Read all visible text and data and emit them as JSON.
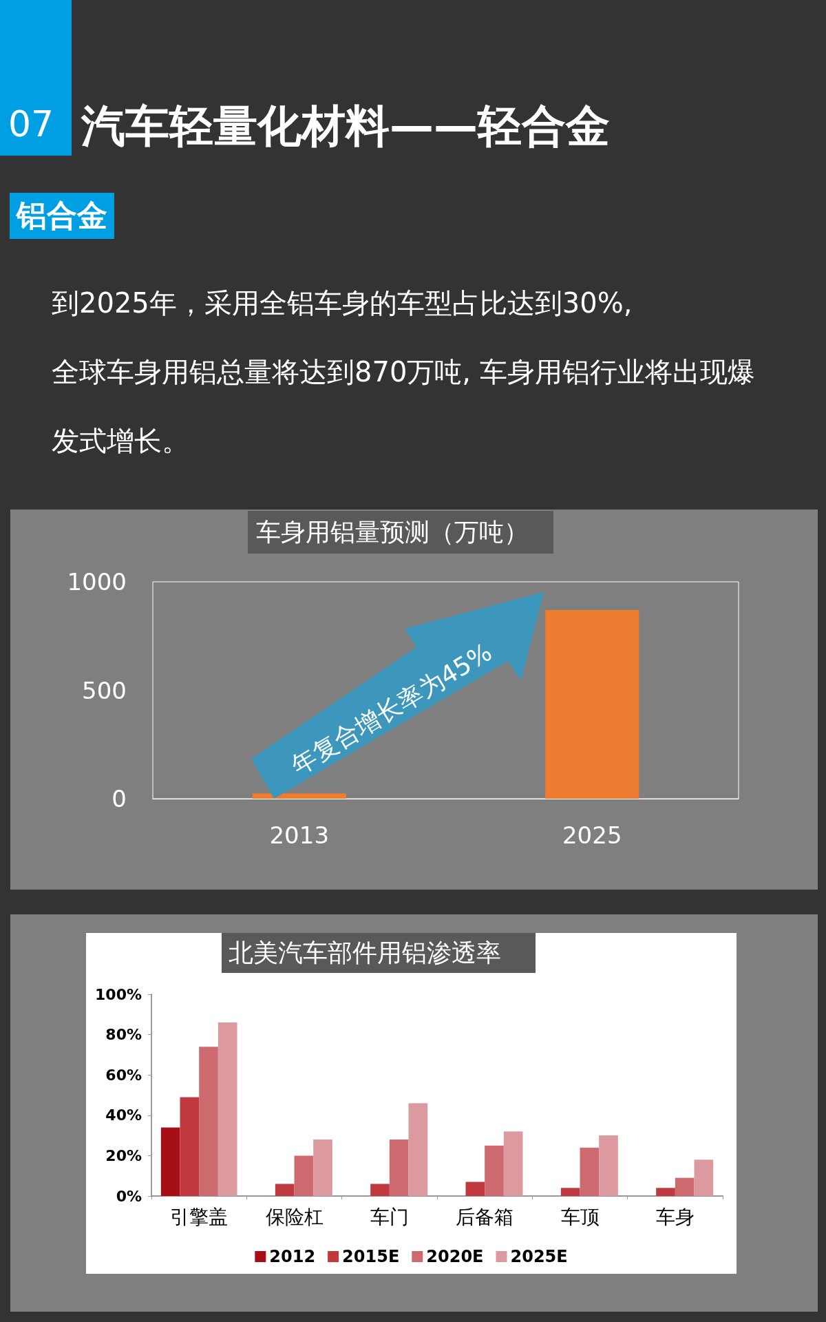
{
  "chart_data": [
    {
      "type": "other",
      "title": "汽车轻量化材料——轻合金",
      "annotations": [
        "07",
        "铝合金",
        "到2025年，采用全铝车身的车型占比达到30%,",
        "全球车身用铝总量将达到870万吨, 车身用铝行业将出现爆发式增长。"
      ]
    },
    {
      "type": "bar",
      "title": "车身用铝量预测（万吨）",
      "categories": [
        "2013",
        "2025"
      ],
      "values": [
        25,
        870
      ],
      "color": "#ed7d31",
      "ylim": [
        0,
        1000
      ],
      "yticks": [
        0,
        500,
        1000
      ],
      "grid": false,
      "annotations": [
        "年复合增长率为45%"
      ]
    },
    {
      "type": "bar",
      "title": "北美汽车部件用铝渗透率",
      "categories": [
        "引擎盖",
        "保险杠",
        "车门",
        "后备箱",
        "车顶",
        "车身"
      ],
      "series": [
        {
          "name": "2012",
          "color": "#a50f15",
          "values": [
            34,
            null,
            null,
            null,
            null,
            null
          ]
        },
        {
          "name": "2015E",
          "color": "#c0393f",
          "values": [
            49,
            6,
            6,
            7,
            4,
            4
          ]
        },
        {
          "name": "2020E",
          "color": "#cc6a70",
          "values": [
            74,
            20,
            28,
            25,
            24,
            9
          ]
        },
        {
          "name": "2025E",
          "color": "#dc9aa0",
          "values": [
            86,
            28,
            46,
            32,
            30,
            18
          ]
        }
      ],
      "ylim": [
        0,
        100
      ],
      "yticks": [
        {
          "value": 0,
          "label": "0%"
        },
        {
          "value": 20,
          "label": "20%"
        },
        {
          "value": 40,
          "label": "40%"
        },
        {
          "value": 60,
          "label": "60%"
        },
        {
          "value": 80,
          "label": "80%"
        },
        {
          "value": 100,
          "label": "100%"
        }
      ],
      "grid": false,
      "legend": "bottom"
    }
  ]
}
